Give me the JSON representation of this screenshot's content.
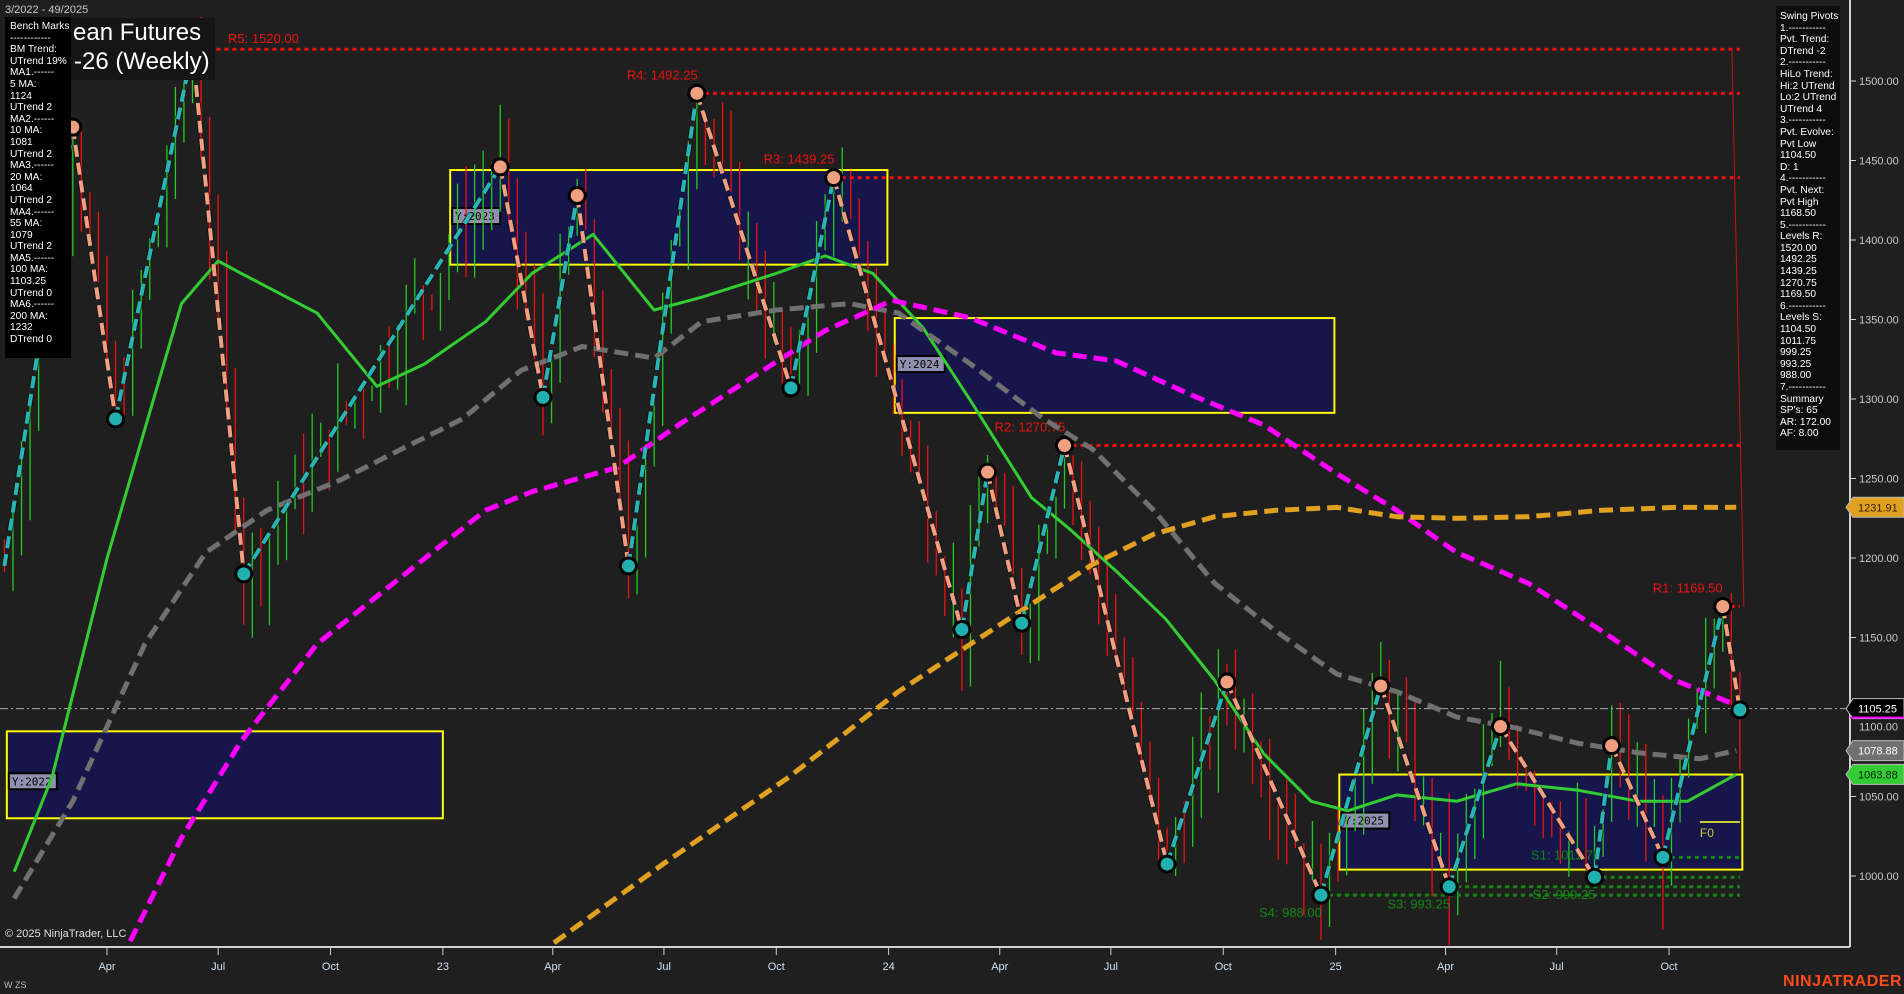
{
  "header": {
    "date_range": "3/2022 - 49/2025",
    "title_line1": "ean Futures",
    "title_line2": "-26 (Weekly)"
  },
  "bench_marks": [
    "Bench Marks",
    "------------",
    "BM Trend:",
    "UTrend 19%",
    "MA1.------",
    "5 MA:",
    "1124",
    "UTrend 2",
    "MA2.------",
    "10 MA:",
    "1081",
    "UTrend 2",
    "MA3.------",
    "20 MA:",
    "1064",
    "UTrend 2",
    "MA4.------",
    "55 MA:",
    "1079",
    "UTrend 2",
    "MA5.------",
    "100 MA:",
    "1103.25",
    "UTrend 0",
    "MA6.------",
    "200 MA:",
    "1232",
    "DTrend 0"
  ],
  "swing_pivots": [
    "Swing Pivots",
    "1.-----------",
    "Pvt. Trend:",
    "DTrend -2",
    "2.-----------",
    "HiLo Trend:",
    "Hi:2 UTrend",
    "Lo:2 UTrend",
    "UTrend 4",
    "3.-----------",
    "Pvt. Evolve:",
    "Pvt Low",
    "1104.50",
    "D: 1",
    "4.-----------",
    "Pvt. Next:",
    "Pvt High",
    "1168.50",
    "5.-----------",
    "Levels R:",
    "1520.00",
    "1492.25",
    "1439.25",
    "1270.75",
    "1169.50",
    "6.-----------",
    "Levels S:",
    "1104.50",
    "1011.75",
    "999.25",
    "993.25",
    "988.00",
    "7.-----------",
    "Summary",
    "SP's: 65",
    "AR: 172.00",
    "AF: 8.00"
  ],
  "footer": {
    "copyright": "© 2025 NinjaTrader, LLC",
    "bottom_left": "W ZS",
    "brand": "NINJATRADER"
  },
  "chart_data": {
    "type": "line",
    "timeframe": "weekly",
    "y_axis": {
      "ticks": [
        1000,
        1050,
        1100,
        1150,
        1200,
        1250,
        1300,
        1350,
        1400,
        1450,
        1500
      ],
      "position": "right"
    },
    "x_axis": {
      "ticks": [
        {
          "label": "Apr",
          "date": "2022-04-01"
        },
        {
          "label": "Jul",
          "date": "2022-07-01"
        },
        {
          "label": "Oct",
          "date": "2022-10-01"
        },
        {
          "label": "23",
          "date": "2023-01-01"
        },
        {
          "label": "Apr",
          "date": "2023-04-01"
        },
        {
          "label": "Jul",
          "date": "2023-07-01"
        },
        {
          "label": "Oct",
          "date": "2023-10-01"
        },
        {
          "label": "24",
          "date": "2024-01-01"
        },
        {
          "label": "Apr",
          "date": "2024-04-01"
        },
        {
          "label": "Jul",
          "date": "2024-07-01"
        },
        {
          "label": "Oct",
          "date": "2024-10-01"
        },
        {
          "label": "25",
          "date": "2025-01-01"
        },
        {
          "label": "Apr",
          "date": "2025-04-01"
        },
        {
          "label": "Jul",
          "date": "2025-07-01"
        },
        {
          "label": "Oct",
          "date": "2025-10-01"
        }
      ]
    },
    "price_tags": [
      {
        "value": "1231.91",
        "color": "#e0a020",
        "text_color": "#3a1a00"
      },
      {
        "value": "1105.25",
        "color": "#000000",
        "text_color": "#ffffff",
        "underline": "#ff00ff"
      },
      {
        "value": "1078.88",
        "color": "#707070",
        "text_color": "#ffffff"
      },
      {
        "value": "1063.88",
        "color": "#33cc33",
        "text_color": "#002200"
      }
    ],
    "current_price": 1105.25,
    "swing_pivots": [
      {
        "date": "2022-01-07",
        "price": 1195
      },
      {
        "date": "2022-03-04",
        "price": 1471,
        "type": "high"
      },
      {
        "date": "2022-04-08",
        "price": 1287.5,
        "type": "low"
      },
      {
        "date": "2022-06-10",
        "price": 1520,
        "type": "high"
      },
      {
        "date": "2022-07-22",
        "price": 1190,
        "type": "low"
      },
      {
        "date": "2023-02-17",
        "price": 1446,
        "type": "high"
      },
      {
        "date": "2023-03-24",
        "price": 1301,
        "type": "low"
      },
      {
        "date": "2023-04-21",
        "price": 1428,
        "type": "high"
      },
      {
        "date": "2023-06-02",
        "price": 1195,
        "type": "low"
      },
      {
        "date": "2023-07-28",
        "price": 1492.25,
        "type": "high"
      },
      {
        "date": "2023-10-13",
        "price": 1307,
        "type": "low"
      },
      {
        "date": "2023-11-17",
        "price": 1439.25,
        "type": "high"
      },
      {
        "date": "2024-03-01",
        "price": 1155,
        "type": "low"
      },
      {
        "date": "2024-03-22",
        "price": 1254,
        "type": "high"
      },
      {
        "date": "2024-04-19",
        "price": 1159,
        "type": "low"
      },
      {
        "date": "2024-05-24",
        "price": 1270.75,
        "type": "high"
      },
      {
        "date": "2024-08-16",
        "price": 1007.5,
        "type": "low"
      },
      {
        "date": "2024-10-04",
        "price": 1122,
        "type": "high"
      },
      {
        "date": "2024-12-20",
        "price": 988,
        "type": "low"
      },
      {
        "date": "2025-02-07",
        "price": 1119.5,
        "type": "high"
      },
      {
        "date": "2025-04-04",
        "price": 993.25,
        "type": "low"
      },
      {
        "date": "2025-05-16",
        "price": 1094,
        "type": "high"
      },
      {
        "date": "2025-08-01",
        "price": 999.25,
        "type": "low"
      },
      {
        "date": "2025-08-15",
        "price": 1082,
        "type": "high"
      },
      {
        "date": "2025-09-26",
        "price": 1011.75,
        "type": "low"
      },
      {
        "date": "2025-11-14",
        "price": 1169.5,
        "type": "high"
      },
      {
        "date": "2025-11-28",
        "price": 1104.5,
        "type": "low"
      }
    ],
    "resistance": [
      {
        "label": "R5: 1520.00",
        "price": 1520,
        "from": "2022-06-10"
      },
      {
        "label": "R4: 1492.25",
        "price": 1492.25,
        "from": "2023-07-28"
      },
      {
        "label": "R3: 1439.25",
        "price": 1439.25,
        "from": "2023-11-17"
      },
      {
        "label": "R2: 1270.75",
        "price": 1270.75,
        "from": "2024-05-24"
      },
      {
        "label": "R1: 1169.50",
        "price": 1169.5,
        "from": "2025-11-14"
      }
    ],
    "support": [
      {
        "label": "S4: 988.00",
        "price": 988,
        "from": "2024-12-20"
      },
      {
        "label": "S3: 993.25",
        "price": 993.25,
        "from": "2025-04-04"
      },
      {
        "label": "S2: 999.25",
        "price": 999.25,
        "from": "2025-08-01"
      },
      {
        "label": "S1: 1011.75",
        "price": 1011.75,
        "from": "2025-09-26"
      }
    ],
    "f0": {
      "label": "F0",
      "price": 1034
    },
    "year_boxes": [
      {
        "label": "Y:2022",
        "from": "2022-01-09",
        "to": "2023-01-01",
        "high": 1091,
        "low": 1036.3
      },
      {
        "label": "Y:2023",
        "from": "2023-01-07",
        "to": "2023-12-31",
        "high": 1444,
        "low": 1384.5
      },
      {
        "label": "Y:2024",
        "from": "2024-01-06",
        "to": "2024-12-31",
        "high": 1350.9,
        "low": 1291.3
      },
      {
        "label": "Y:2025",
        "from": "2025-01-04",
        "to": "2025-11-30",
        "high": 1063.8,
        "low": 1004
      }
    ],
    "series": [
      {
        "color": "#33cc33",
        "style": "solid",
        "points": [
          [
            "2022-01-15",
            1002.7
          ],
          [
            "2022-02-15",
            1062
          ],
          [
            "2022-04-01",
            1199.7
          ],
          [
            "2022-06-01",
            1360
          ],
          [
            "2022-07-01",
            1386.8
          ],
          [
            "2022-07-20",
            1379
          ],
          [
            "2022-09-20",
            1354
          ],
          [
            "2022-11-08",
            1308
          ],
          [
            "2022-12-17",
            1322
          ],
          [
            "2023-02-05",
            1348.6
          ],
          [
            "2023-03-15",
            1379
          ],
          [
            "2023-05-04",
            1403.5
          ],
          [
            "2023-06-23",
            1356
          ],
          [
            "2023-08-01",
            1364
          ],
          [
            "2023-10-01",
            1379
          ],
          [
            "2023-11-10",
            1390
          ],
          [
            "2023-12-19",
            1379
          ],
          [
            "2024-01-29",
            1345
          ],
          [
            "2024-03-08",
            1299
          ],
          [
            "2024-04-27",
            1238
          ],
          [
            "2024-05-27",
            1219
          ],
          [
            "2024-07-05",
            1192
          ],
          [
            "2024-08-15",
            1161.5
          ],
          [
            "2024-09-24",
            1123
          ],
          [
            "2024-11-03",
            1077
          ],
          [
            "2024-12-12",
            1047
          ],
          [
            "2025-01-11",
            1041
          ],
          [
            "2025-02-20",
            1051
          ],
          [
            "2025-04-10",
            1047
          ],
          [
            "2025-05-29",
            1058
          ],
          [
            "2025-07-18",
            1054
          ],
          [
            "2025-09-06",
            1047
          ],
          [
            "2025-10-16",
            1047
          ],
          [
            "2025-11-25",
            1063.88
          ]
        ]
      },
      {
        "color": "#707070",
        "style": "dashed",
        "points": [
          [
            "2022-01-15",
            985.9
          ],
          [
            "2022-03-04",
            1047
          ],
          [
            "2022-05-02",
            1146
          ],
          [
            "2022-06-21",
            1203.5
          ],
          [
            "2022-08-10",
            1230
          ],
          [
            "2022-10-09",
            1249
          ],
          [
            "2022-11-28",
            1268.4
          ],
          [
            "2023-01-17",
            1287.5
          ],
          [
            "2023-03-06",
            1318
          ],
          [
            "2023-04-25",
            1333
          ],
          [
            "2023-06-23",
            1325.7
          ],
          [
            "2023-08-01",
            1348.6
          ],
          [
            "2023-10-01",
            1356
          ],
          [
            "2023-11-30",
            1360
          ],
          [
            "2024-01-09",
            1354
          ],
          [
            "2024-03-08",
            1322
          ],
          [
            "2024-05-07",
            1287.5
          ],
          [
            "2024-06-16",
            1268.4
          ],
          [
            "2024-08-05",
            1230
          ],
          [
            "2024-09-24",
            1184
          ],
          [
            "2024-11-13",
            1154
          ],
          [
            "2025-01-02",
            1127
          ],
          [
            "2025-02-20",
            1116
          ],
          [
            "2025-04-10",
            1100
          ],
          [
            "2025-05-29",
            1093
          ],
          [
            "2025-07-18",
            1083.6
          ],
          [
            "2025-09-06",
            1077.5
          ],
          [
            "2025-10-26",
            1073.7
          ],
          [
            "2025-11-25",
            1078.88
          ]
        ]
      },
      {
        "color": "#ff00ff",
        "style": "dashed",
        "points": [
          [
            "2022-04-20",
            959
          ],
          [
            "2022-06-01",
            1024
          ],
          [
            "2022-07-20",
            1085
          ],
          [
            "2022-09-20",
            1146
          ],
          [
            "2022-12-17",
            1199.7
          ],
          [
            "2023-02-05",
            1230
          ],
          [
            "2023-03-15",
            1241.7
          ],
          [
            "2023-05-24",
            1257
          ],
          [
            "2023-07-13",
            1283.7
          ],
          [
            "2023-09-12",
            1314
          ],
          [
            "2023-11-10",
            1343
          ],
          [
            "2024-01-04",
            1362
          ],
          [
            "2024-03-08",
            1351
          ],
          [
            "2024-05-17",
            1329
          ],
          [
            "2024-07-05",
            1324
          ],
          [
            "2024-09-04",
            1302.8
          ],
          [
            "2024-11-03",
            1283.7
          ],
          [
            "2025-01-02",
            1253
          ],
          [
            "2025-02-20",
            1230
          ],
          [
            "2025-04-10",
            1203.5
          ],
          [
            "2025-06-08",
            1184
          ],
          [
            "2025-08-07",
            1154
          ],
          [
            "2025-10-06",
            1123
          ],
          [
            "2025-12-03",
            1105
          ]
        ]
      },
      {
        "color": "#e0a020",
        "style": "dashed",
        "points": [
          [
            "2023-04-02",
            958
          ],
          [
            "2023-07-03",
            1009
          ],
          [
            "2023-10-11",
            1062
          ],
          [
            "2024-01-09",
            1116
          ],
          [
            "2024-04-08",
            1161.5
          ],
          [
            "2024-06-16",
            1196
          ],
          [
            "2024-08-05",
            1215
          ],
          [
            "2024-09-24",
            1226
          ],
          [
            "2024-11-13",
            1230
          ],
          [
            "2025-01-02",
            1231.8
          ],
          [
            "2025-02-20",
            1226
          ],
          [
            "2025-04-10",
            1225
          ],
          [
            "2025-06-08",
            1226
          ],
          [
            "2025-08-07",
            1230
          ],
          [
            "2025-10-06",
            1231.8
          ],
          [
            "2025-11-25",
            1231.91
          ]
        ]
      }
    ]
  }
}
